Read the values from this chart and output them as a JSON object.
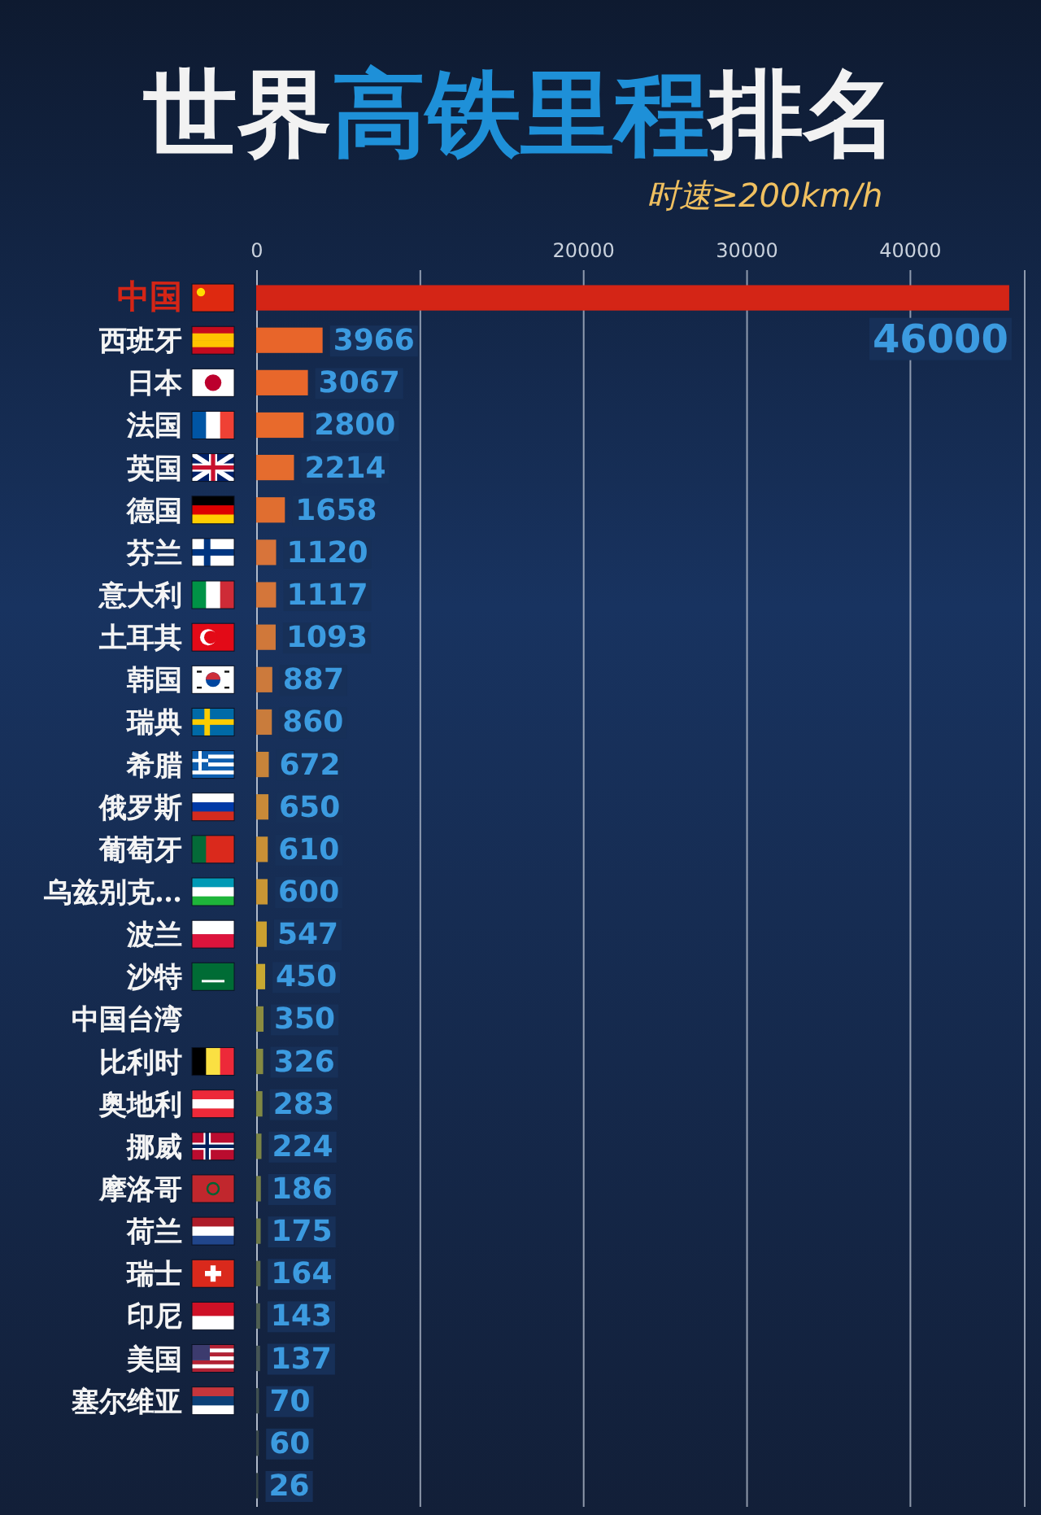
{
  "chart_data": {
    "type": "bar",
    "orientation": "horizontal",
    "title": "世界高铁里程排名",
    "subtitle": "时速≥200km/h",
    "categories": [
      "中国",
      "西班牙",
      "日本",
      "法国",
      "英国",
      "德国",
      "芬兰",
      "意大利",
      "土耳其",
      "韩国",
      "瑞典",
      "希腊",
      "俄罗斯",
      "葡萄牙",
      "乌兹别克…",
      "波兰",
      "沙特",
      "中国台湾",
      "比利时",
      "奥地利",
      "挪威",
      "摩洛哥",
      "荷兰",
      "瑞士",
      "印尼",
      "美国",
      "塞尔维亚",
      null,
      null
    ],
    "values": [
      46000,
      3966,
      3067,
      2800,
      2214,
      1658,
      1120,
      1117,
      1093,
      887,
      860,
      672,
      650,
      610,
      600,
      547,
      450,
      350,
      326,
      283,
      224,
      186,
      175,
      164,
      143,
      137,
      70,
      60,
      26
    ],
    "colors": [
      "#d42516",
      "#e8652a",
      "#e8672b",
      "#e86a2c",
      "#e56c2e",
      "#e06e30",
      "#d8743a",
      "#d4763a",
      "#d0783a",
      "#cc7a3c",
      "#c97c3c",
      "#c8843a",
      "#c98a38",
      "#c99036",
      "#c99634",
      "#cba030",
      "#c8a832",
      "#8c8c40",
      "#868a42",
      "#808844",
      "#7a8446",
      "#747e48",
      "#6c7848",
      "#5e6c4c",
      "#4e5e52",
      "#465656",
      "#405050",
      "#3c4a4c",
      "#384648"
    ],
    "xlim": [
      0,
      47000
    ],
    "xticks": [
      0,
      {
        "value": 10000,
        "label": null
      },
      20000,
      30000,
      40000
    ],
    "grid": "x",
    "data_labels": true
  }
}
